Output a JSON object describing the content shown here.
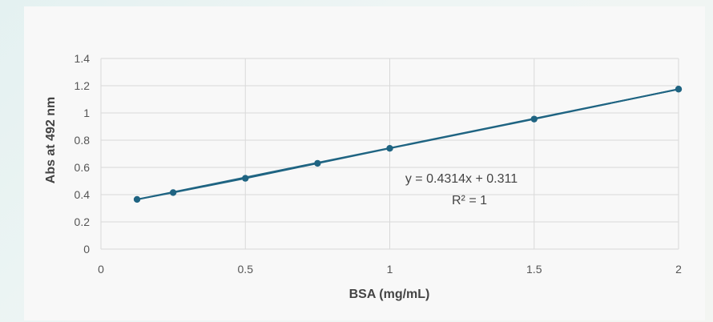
{
  "chart_data": {
    "type": "scatter",
    "xlabel": "BSA (mg/mL)",
    "ylabel": "Abs at 492 nm",
    "xlim": [
      0,
      2
    ],
    "ylim": [
      0,
      1.4
    ],
    "xticks": [
      0,
      0.5,
      1,
      1.5,
      2
    ],
    "xtick_labels": [
      "0",
      "0.5",
      "1",
      "1.5",
      "2"
    ],
    "yticks": [
      0,
      0.2,
      0.4,
      0.6,
      0.8,
      1,
      1.2,
      1.4
    ],
    "ytick_labels": [
      "0",
      "0.2",
      "0.4",
      "0.6",
      "0.8",
      "1",
      "1.2",
      "1.4"
    ],
    "grid": true,
    "series": [
      {
        "x": [
          0.125,
          0.25,
          0.5,
          0.75,
          1,
          1.5,
          2
        ],
        "y": [
          0.365,
          0.415,
          0.52,
          0.63,
          0.74,
          0.955,
          1.175
        ],
        "color": "#1f6482"
      }
    ],
    "trendline": {
      "slope": 0.4314,
      "intercept": 0.311,
      "x_range": [
        0.125,
        2
      ]
    },
    "annotations": {
      "equation": "y = 0.4314x + 0.311",
      "r_squared": "R² = 1"
    },
    "colors": {
      "series": "#1f6482",
      "grid": "#d9d9d9",
      "background": "#f8f8f8"
    }
  }
}
